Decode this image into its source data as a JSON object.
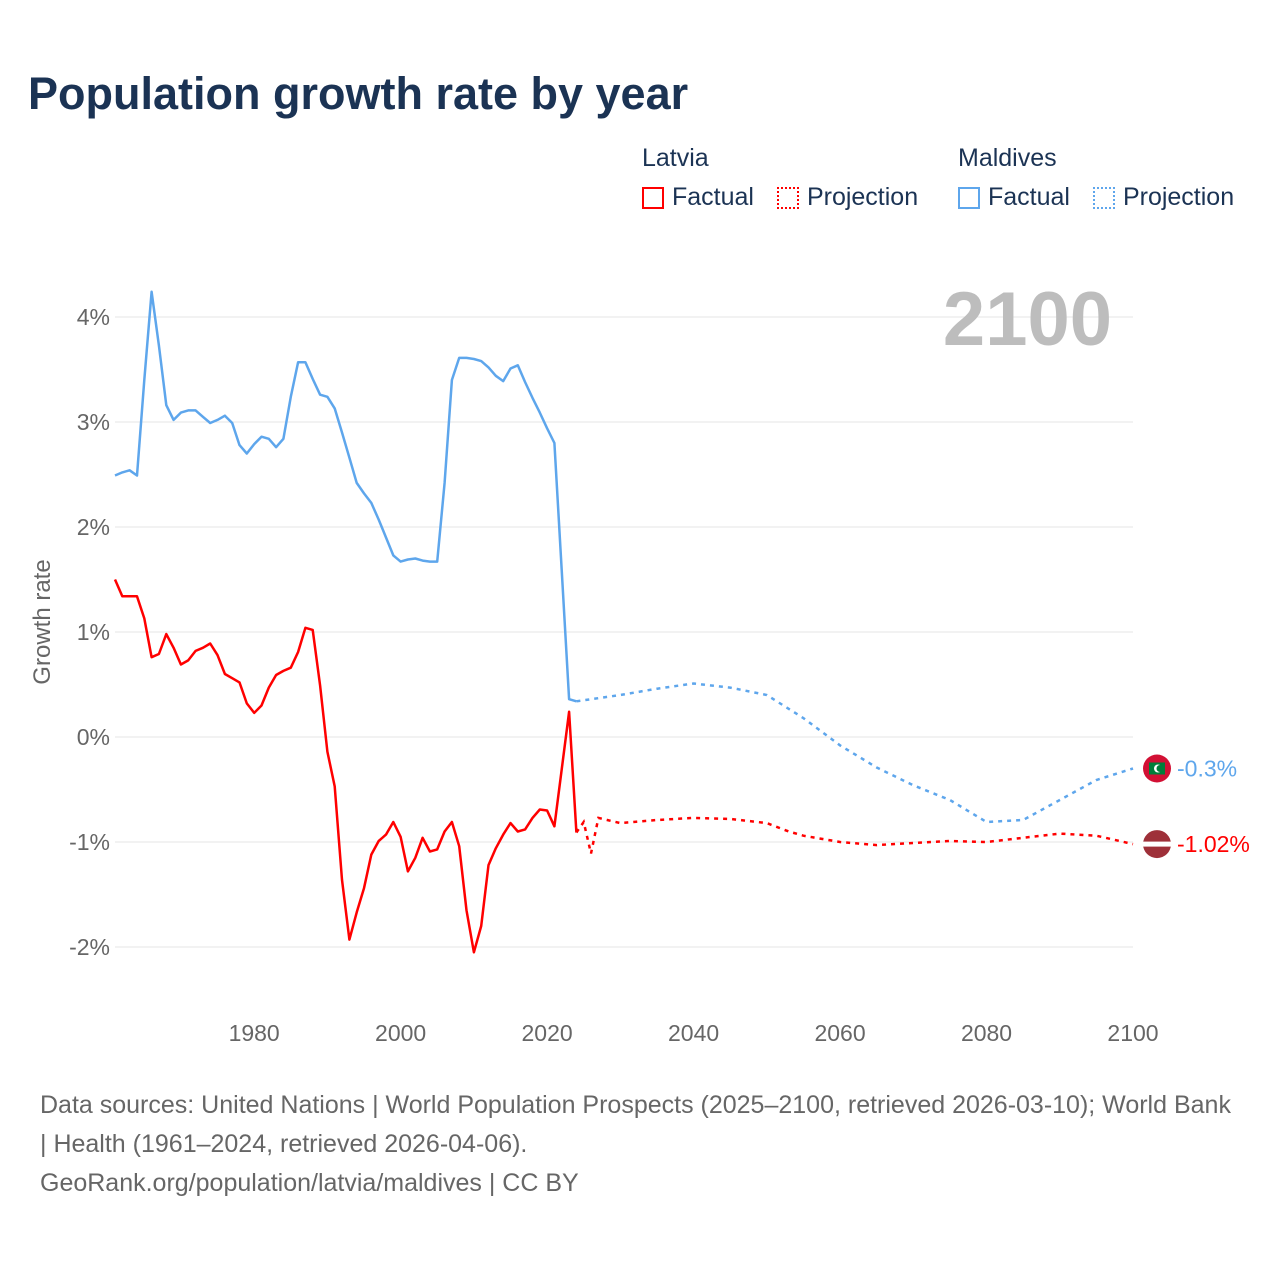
{
  "title": "Population growth rate by year",
  "year_display": "2100",
  "legend": [
    {
      "country": "Latvia",
      "factual": "Factual",
      "projection": "Projection",
      "color": "#ff0000"
    },
    {
      "country": "Maldives",
      "factual": "Factual",
      "projection": "Projection",
      "color": "#5ea6ec"
    }
  ],
  "footer": {
    "sources": "Data sources: United Nations | World Population Prospects (2025–2100, retrieved 2026-03-10); World Bank | Health (1961–2024, retrieved 2026-04-06).",
    "credit": "GeoRank.org/population/latvia/maldives | CC BY"
  },
  "chart_data": {
    "type": "line",
    "title": "Population growth rate by year",
    "xlabel": "",
    "ylabel": "Growth rate",
    "xlim": [
      1961,
      2100
    ],
    "ylim": [
      -2.5,
      4.5
    ],
    "x_ticks": [
      1980,
      2000,
      2020,
      2040,
      2060,
      2080,
      2100
    ],
    "x_tick_labels": [
      "1980",
      "2000",
      "2020",
      "2040",
      "2060",
      "2080",
      "2100"
    ],
    "y_ticks": [
      -2,
      -1,
      0,
      1,
      2,
      3,
      4
    ],
    "y_tick_labels": [
      "-2%",
      "-1%",
      "0%",
      "1%",
      "2%",
      "3%",
      "4%"
    ],
    "grid": true,
    "legend_position": "top-right",
    "series": [
      {
        "name": "Latvia",
        "color": "#ff0000",
        "end_label": "-1.02%",
        "factual": {
          "x": [
            1961,
            1962,
            1963,
            1964,
            1965,
            1966,
            1967,
            1968,
            1969,
            1970,
            1971,
            1972,
            1973,
            1974,
            1975,
            1976,
            1977,
            1978,
            1979,
            1980,
            1981,
            1982,
            1983,
            1984,
            1985,
            1986,
            1987,
            1988,
            1989,
            1990,
            1991,
            1992,
            1993,
            1994,
            1995,
            1996,
            1997,
            1998,
            1999,
            2000,
            2001,
            2002,
            2003,
            2004,
            2005,
            2006,
            2007,
            2008,
            2009,
            2010,
            2011,
            2012,
            2013,
            2014,
            2015,
            2016,
            2017,
            2018,
            2019,
            2020,
            2021,
            2022,
            2023,
            2024
          ],
          "y": [
            1.5,
            1.34,
            1.34,
            1.34,
            1.13,
            0.76,
            0.79,
            0.98,
            0.85,
            0.69,
            0.73,
            0.82,
            0.85,
            0.89,
            0.78,
            0.6,
            0.56,
            0.52,
            0.32,
            0.23,
            0.3,
            0.47,
            0.59,
            0.63,
            0.66,
            0.81,
            1.04,
            1.02,
            0.49,
            -0.14,
            -0.47,
            -1.36,
            -1.93,
            -1.67,
            -1.44,
            -1.12,
            -0.99,
            -0.93,
            -0.81,
            -0.95,
            -1.28,
            -1.15,
            -0.96,
            -1.09,
            -1.07,
            -0.9,
            -0.81,
            -1.04,
            -1.65,
            -2.05,
            -1.8,
            -1.22,
            -1.06,
            -0.93,
            -0.82,
            -0.9,
            -0.88,
            -0.77,
            -0.69,
            -0.7,
            -0.85,
            -0.31,
            0.24,
            -0.91
          ]
        },
        "projection": {
          "x": [
            2024,
            2025,
            2026,
            2027,
            2030,
            2035,
            2040,
            2045,
            2050,
            2053,
            2055,
            2060,
            2065,
            2070,
            2075,
            2080,
            2085,
            2090,
            2095,
            2100
          ],
          "y": [
            -0.91,
            -0.81,
            -1.11,
            -0.77,
            -0.82,
            -0.79,
            -0.77,
            -0.78,
            -0.82,
            -0.9,
            -0.94,
            -1.0,
            -1.03,
            -1.01,
            -0.99,
            -1.0,
            -0.96,
            -0.92,
            -0.94,
            -1.02
          ]
        }
      },
      {
        "name": "Maldives",
        "color": "#5ea6ec",
        "end_label": "-0.3%",
        "factual": {
          "x": [
            1961,
            1962,
            1963,
            1964,
            1965,
            1966,
            1967,
            1968,
            1969,
            1970,
            1971,
            1972,
            1973,
            1974,
            1975,
            1976,
            1977,
            1978,
            1979,
            1980,
            1981,
            1982,
            1983,
            1984,
            1985,
            1986,
            1987,
            1988,
            1989,
            1990,
            1991,
            1992,
            1993,
            1994,
            1995,
            1996,
            1997,
            1998,
            1999,
            2000,
            2001,
            2002,
            2003,
            2004,
            2005,
            2006,
            2007,
            2008,
            2009,
            2010,
            2011,
            2012,
            2013,
            2014,
            2015,
            2016,
            2017,
            2018,
            2019,
            2020,
            2021,
            2022,
            2023,
            2024
          ],
          "y": [
            2.49,
            2.52,
            2.54,
            2.49,
            3.4,
            4.24,
            3.73,
            3.16,
            3.02,
            3.09,
            3.11,
            3.11,
            3.05,
            2.99,
            3.02,
            3.06,
            2.99,
            2.78,
            2.7,
            2.79,
            2.86,
            2.84,
            2.76,
            2.84,
            3.24,
            3.57,
            3.57,
            3.41,
            3.26,
            3.24,
            3.13,
            2.9,
            2.66,
            2.42,
            2.32,
            2.23,
            2.07,
            1.9,
            1.73,
            1.67,
            1.69,
            1.7,
            1.68,
            1.67,
            1.67,
            2.42,
            3.4,
            3.61,
            3.61,
            3.6,
            3.58,
            3.52,
            3.44,
            3.39,
            3.51,
            3.54,
            3.38,
            3.23,
            3.09,
            2.94,
            2.8,
            1.59,
            0.36,
            0.34
          ]
        },
        "projection": {
          "x": [
            2024,
            2030,
            2035,
            2040,
            2045,
            2050,
            2055,
            2060,
            2065,
            2070,
            2075,
            2080,
            2085,
            2090,
            2095,
            2100
          ],
          "y": [
            0.34,
            0.4,
            0.46,
            0.51,
            0.47,
            0.4,
            0.18,
            -0.08,
            -0.29,
            -0.46,
            -0.6,
            -0.81,
            -0.79,
            -0.6,
            -0.41,
            -0.3
          ]
        }
      }
    ]
  }
}
